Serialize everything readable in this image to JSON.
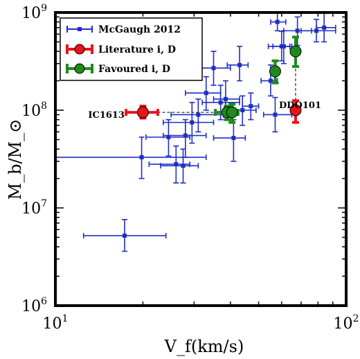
{
  "chart_data": {
    "type": "scatter",
    "xscale": "log",
    "yscale": "log",
    "xlim": [
      10,
      100
    ],
    "ylim": [
      1000000,
      1000000000
    ],
    "xlabel": "V_f(km/s)",
    "ylabel": "M_b/M_⊙",
    "x_ticks": [
      {
        "base": "10",
        "exp": "1"
      },
      {
        "base": "10",
        "exp": "2"
      }
    ],
    "y_ticks": [
      {
        "base": "10",
        "exp": "6"
      },
      {
        "base": "10",
        "exp": "7"
      },
      {
        "base": "10",
        "exp": "8"
      },
      {
        "base": "10",
        "exp": "9"
      }
    ],
    "legend": {
      "position": "top-left",
      "entries": [
        {
          "label": "McGaugh 2012",
          "color": "#1f2ec4",
          "marker": "square"
        },
        {
          "label": "Literature i, D",
          "color": "#e8141c",
          "marker": "circle"
        },
        {
          "label": "Favoured i, D",
          "color": "#1e8a1e",
          "marker": "circle"
        }
      ]
    },
    "series": [
      {
        "name": "McGaugh 2012",
        "color": "#1f2ec4",
        "points": [
          {
            "x": 17.3,
            "y": 5200000.0,
            "xerr": [
              12.5,
              24.0
            ],
            "yerr": [
              3600000.0,
              7600000.0
            ]
          },
          {
            "x": 19.8,
            "y": 33000000.0,
            "xerr": [
              10.0,
              33.0
            ],
            "yerr": [
              20000000.0,
              53000000.0
            ]
          },
          {
            "x": 24.5,
            "y": 53000000.0,
            "xerr": [
              20.5,
              29.0
            ],
            "yerr": [
              34000000.0,
              80000000.0
            ]
          },
          {
            "x": 26.0,
            "y": 28000000.0,
            "xerr": [
              21.0,
              29.0
            ],
            "yerr": [
              18000000.0,
              43000000.0
            ]
          },
          {
            "x": 27.5,
            "y": 27000000.0,
            "xerr": [
              23.0,
              31.0
            ],
            "yerr": [
              18000000.0,
              40000000.0
            ]
          },
          {
            "x": 29.5,
            "y": 75000000.0,
            "xerr": [
              23.5,
              35.0
            ],
            "yerr": [
              46000000.0,
              120000000.0
            ]
          },
          {
            "x": 28.0,
            "y": 55000000.0,
            "xerr": [
              23.5,
              33.0
            ],
            "yerr": [
              33000000.0,
              80000000.0
            ]
          },
          {
            "x": 31.0,
            "y": 90000000.0,
            "xerr": [
              25.0,
              39.0
            ],
            "yerr": [
              60000000.0,
              130000000.0
            ]
          },
          {
            "x": 33.0,
            "y": 150000000.0,
            "xerr": [
              28.0,
              37.0
            ],
            "yerr": [
              100000000.0,
              220000000.0
            ]
          },
          {
            "x": 35.0,
            "y": 270000000.0,
            "xerr": [
              31.0,
              40.0
            ],
            "yerr": [
              180000000.0,
              400000000.0
            ]
          },
          {
            "x": 37.0,
            "y": 120000000.0,
            "xerr": [
              32.0,
              43.0
            ],
            "yerr": [
              80000000.0,
              180000000.0
            ]
          },
          {
            "x": 38.5,
            "y": 130000000.0,
            "xerr": [
              35.0,
              43.0
            ],
            "yerr": [
              85000000.0,
              200000000.0
            ]
          },
          {
            "x": 41.0,
            "y": 52000000.0,
            "xerr": [
              35.0,
              45.0
            ],
            "yerr": [
              30000000.0,
              80000000.0
            ]
          },
          {
            "x": 43.0,
            "y": 290000000.0,
            "xerr": [
              39.0,
              46.0
            ],
            "yerr": [
              200000000.0,
              450000000.0
            ]
          },
          {
            "x": 44.0,
            "y": 100000000.0,
            "xerr": [
              38.0,
              49.0
            ],
            "yerr": [
              70000000.0,
              140000000.0
            ]
          },
          {
            "x": 47.0,
            "y": 110000000.0,
            "xerr": [
              44.0,
              50.0
            ],
            "yerr": [
              80000000.0,
              150000000.0
            ]
          },
          {
            "x": 55.0,
            "y": 200000000.0,
            "xerr": [
              51.0,
              58.0
            ],
            "yerr": [
              140000000.0,
              290000000.0
            ]
          },
          {
            "x": 57.0,
            "y": 90000000.0,
            "xerr": [
              52.0,
              65.0
            ],
            "yerr": [
              60000000.0,
              135000000.0
            ]
          },
          {
            "x": 60.0,
            "y": 450000000.0,
            "xerr": [
              54.0,
              64.0
            ],
            "yerr": [
              320000000.0,
              640000000.0
            ]
          },
          {
            "x": 61.0,
            "y": 450000000.0,
            "xerr": [
              56.0,
              65.0
            ],
            "yerr": [
              300000000.0,
              650000000.0
            ]
          },
          {
            "x": 58.0,
            "y": 800000000.0,
            "xerr": [
              55.0,
              62.0
            ],
            "yerr": [
              650000000.0,
              1000000000.0
            ]
          },
          {
            "x": 68.0,
            "y": 650000000.0,
            "xerr": [
              61.0,
              76.0
            ],
            "yerr": [
              460000000.0,
              900000000.0
            ]
          },
          {
            "x": 79.0,
            "y": 650000000.0,
            "xerr": [
              70.0,
              92.0
            ],
            "yerr": [
              500000000.0,
              850000000.0
            ]
          },
          {
            "x": 84.0,
            "y": 700000000.0,
            "xerr": [
              79.0,
              92.0
            ],
            "yerr": [
              500000000.0,
              1000000000.0
            ]
          }
        ]
      },
      {
        "name": "Literature i, D",
        "color": "#e8141c",
        "points": [
          {
            "x": 20.0,
            "y": 95000000.0,
            "xerr": [
              17.5,
              22.5
            ],
            "yerr": [
              83000000.0,
              110000000.0
            ]
          },
          {
            "x": 67.0,
            "y": 100000000.0,
            "xerr": [
              65.0,
              69.0
            ],
            "yerr": [
              75000000.0,
              125000000.0
            ]
          }
        ]
      },
      {
        "name": "Favoured i, D",
        "color": "#1e8a1e",
        "points": [
          {
            "x": 39.0,
            "y": 95000000.0,
            "xerr": [
              35.5,
              42.0
            ],
            "yerr": [
              80000000.0,
              110000000.0
            ]
          },
          {
            "x": 40.5,
            "y": 95000000.0,
            "xerr": [
              38.5,
              42.5
            ],
            "yerr": [
              75000000.0,
              115000000.0
            ]
          },
          {
            "x": 57.0,
            "y": 250000000.0,
            "xerr": [
              55.5,
              58.5
            ],
            "yerr": [
              190000000.0,
              320000000.0
            ]
          },
          {
            "x": 67.0,
            "y": 400000000.0,
            "xerr": [
              65.5,
              68.5
            ],
            "yerr": [
              280000000.0,
              560000000.0
            ]
          }
        ]
      }
    ],
    "connectors": [
      {
        "from": [
          20.0,
          95000000.0
        ],
        "to": [
          39.0,
          95000000.0
        ]
      },
      {
        "from": [
          67.0,
          100000000.0
        ],
        "to": [
          67.0,
          400000000.0
        ]
      }
    ],
    "annotations": [
      {
        "text": "IC1613",
        "x": 20.0,
        "y": 95000000.0,
        "anchor": "left"
      },
      {
        "text": "DDO101",
        "x": 67.0,
        "y": 100000000.0,
        "anchor": "above-right"
      }
    ]
  }
}
